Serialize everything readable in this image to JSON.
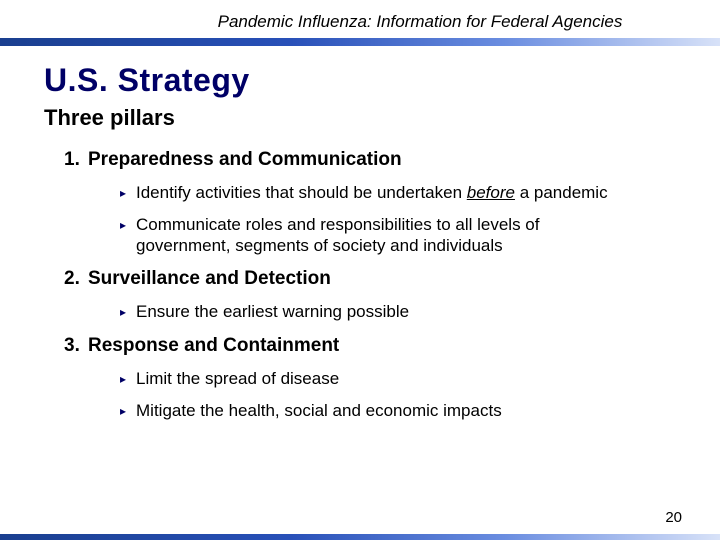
{
  "header": "Pandemic Influenza: Information for Federal Agencies",
  "title": "U.S. Strategy",
  "subtitle": "Three pillars",
  "colors": {
    "title_color": "#000066",
    "bullet_color": "#000066",
    "gradient_start": "#1a3f8f",
    "gradient_end": "#d8e2f8",
    "text_color": "#000000",
    "background": "#ffffff"
  },
  "typography": {
    "header_fontsize": 17,
    "title_fontsize": 32,
    "subtitle_fontsize": 22,
    "pillar_fontsize": 19,
    "bullet_fontsize": 17
  },
  "pillars": [
    {
      "num": "1.",
      "title": "Preparedness and Communication",
      "bullets": [
        {
          "pre": "Identify activities that should be undertaken ",
          "em": "before",
          "post": " a pandemic"
        },
        {
          "pre": "Communicate roles and responsibilities to all levels of government, segments of society and individuals",
          "em": "",
          "post": ""
        }
      ]
    },
    {
      "num": "2.",
      "title": "Surveillance and Detection",
      "bullets": [
        {
          "pre": "Ensure the earliest warning possible",
          "em": "",
          "post": ""
        }
      ]
    },
    {
      "num": "3.",
      "title": "Response and Containment",
      "bullets": [
        {
          "pre": "Limit the spread of disease",
          "em": "",
          "post": ""
        },
        {
          "pre": "Mitigate the health, social and economic impacts",
          "em": "",
          "post": ""
        }
      ]
    }
  ],
  "page_number": "20"
}
